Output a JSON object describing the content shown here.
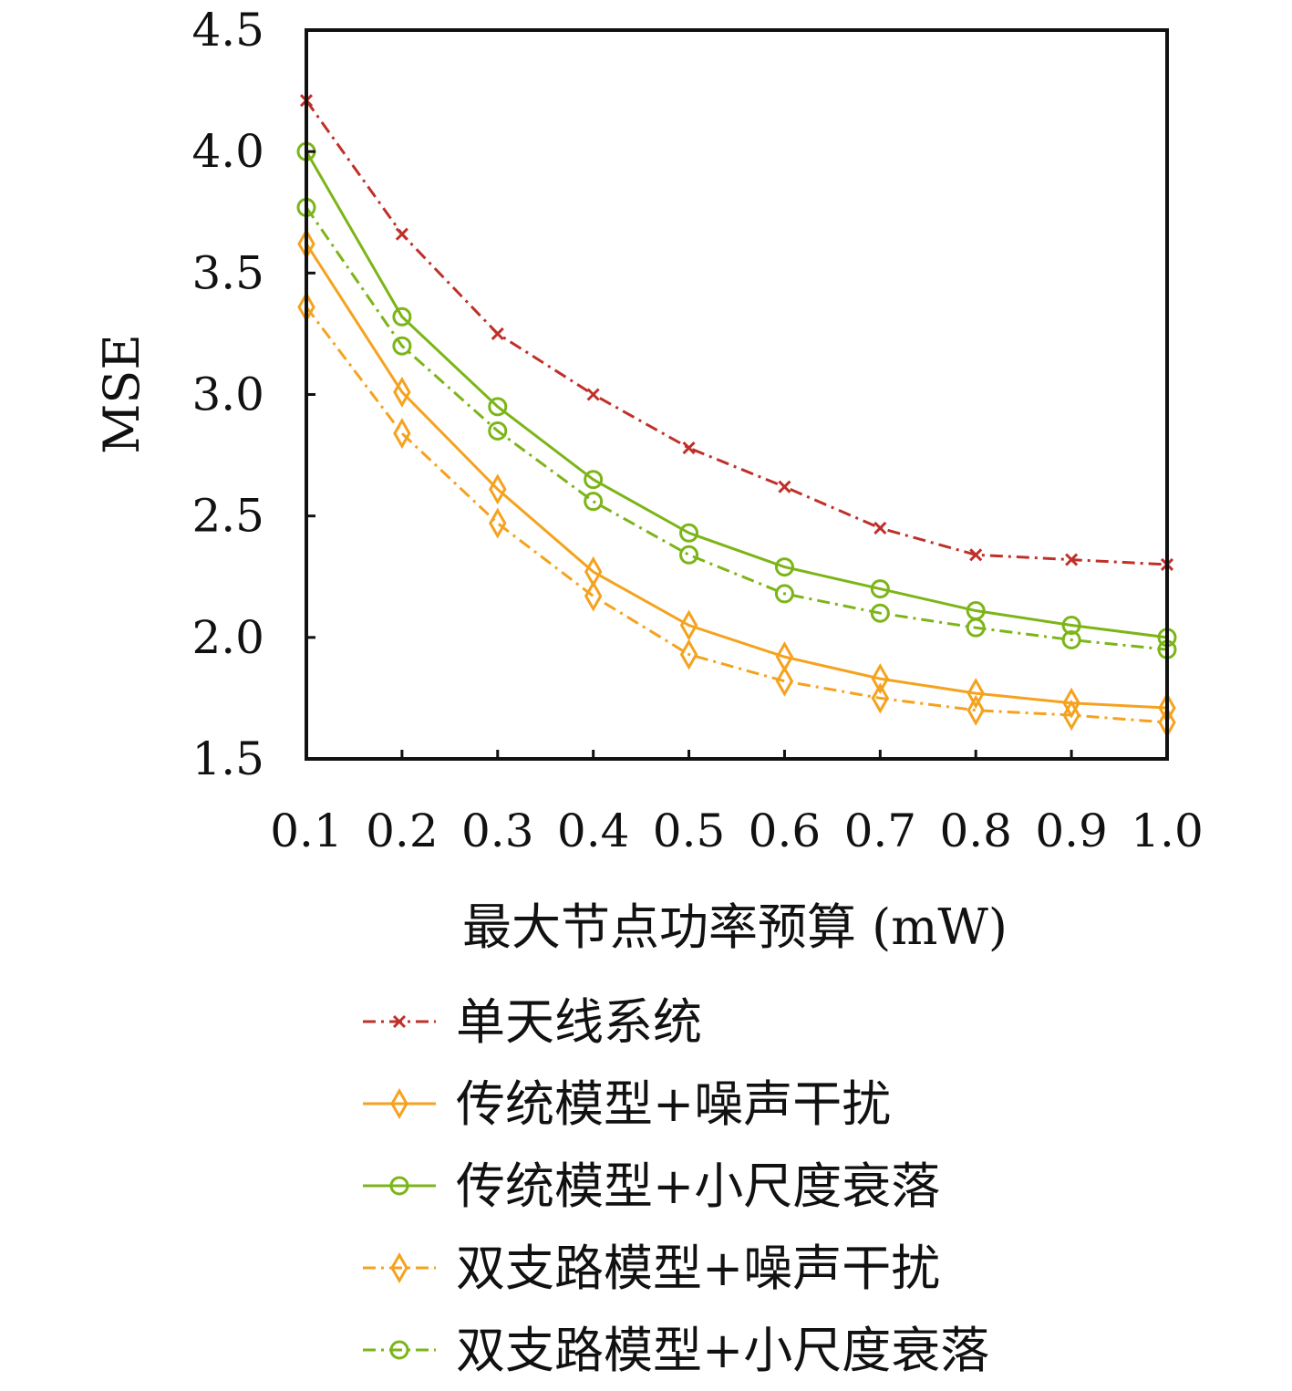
{
  "chart_data": {
    "type": "line",
    "title": "",
    "xlabel": "最大节点功率预算 (mW)",
    "ylabel": "MSE",
    "x": [
      0.1,
      0.2,
      0.3,
      0.4,
      0.5,
      0.6,
      0.7,
      0.8,
      0.9,
      1.0
    ],
    "x_tick_labels": [
      "0.1",
      "0.2",
      "0.3",
      "0.4",
      "0.5",
      "0.6",
      "0.7",
      "0.8",
      "0.9",
      "1.0"
    ],
    "y_ticks": [
      1.5,
      2.0,
      2.5,
      3.0,
      3.5,
      4.0,
      4.5
    ],
    "y_tick_labels": [
      "1.5",
      "2.0",
      "2.5",
      "3.0",
      "3.5",
      "4.0",
      "4.5"
    ],
    "xlim": [
      0.1,
      1.0
    ],
    "ylim": [
      1.5,
      4.5
    ],
    "grid": false,
    "legend_position": "bottom",
    "series": [
      {
        "name": "单天线系统",
        "color": "#c0302a",
        "line_style": "dashdot",
        "marker": "x",
        "values": [
          4.21,
          3.66,
          3.25,
          3.0,
          2.78,
          2.62,
          2.45,
          2.34,
          2.32,
          2.3
        ]
      },
      {
        "name": "传统模型+噪声干扰",
        "color": "#f5a21e",
        "line_style": "solid",
        "marker": "diamond",
        "values": [
          3.62,
          3.01,
          2.61,
          2.27,
          2.05,
          1.92,
          1.83,
          1.77,
          1.73,
          1.71
        ]
      },
      {
        "name": "传统模型+小尺度衰落",
        "color": "#7cb518",
        "line_style": "solid",
        "marker": "circle",
        "values": [
          4.0,
          3.32,
          2.95,
          2.65,
          2.43,
          2.29,
          2.2,
          2.11,
          2.05,
          2.0
        ]
      },
      {
        "name": "双支路模型+噪声干扰",
        "color": "#f5a21e",
        "line_style": "dashdot",
        "marker": "diamond",
        "values": [
          3.36,
          2.84,
          2.47,
          2.17,
          1.93,
          1.82,
          1.75,
          1.7,
          1.68,
          1.65
        ]
      },
      {
        "name": "双支路模型+小尺度衰落",
        "color": "#7cb518",
        "line_style": "dashdot",
        "marker": "circle",
        "values": [
          3.77,
          3.2,
          2.85,
          2.56,
          2.34,
          2.18,
          2.1,
          2.04,
          1.99,
          1.95
        ]
      }
    ]
  }
}
